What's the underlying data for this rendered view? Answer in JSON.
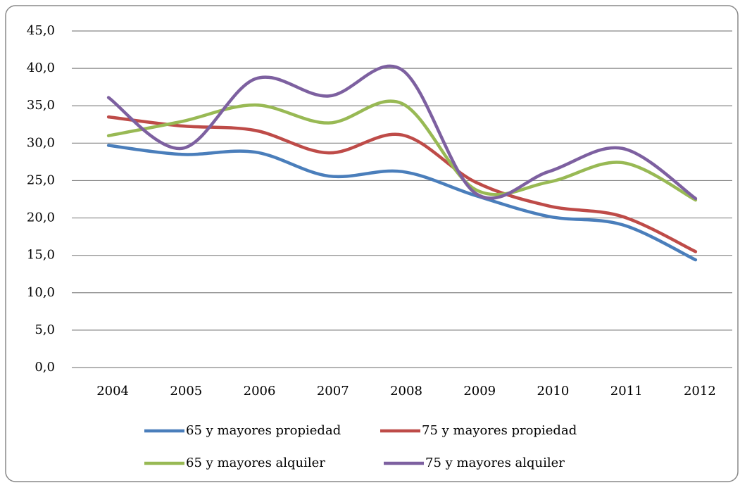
{
  "chart_data": {
    "type": "line",
    "categories": [
      "2004",
      "2005",
      "2006",
      "2007",
      "2008",
      "2009",
      "2010",
      "2011",
      "2012"
    ],
    "series": [
      {
        "name": "65 y mayores propiedad",
        "color": "#4a7ebb",
        "values": [
          29.7,
          28.5,
          28.8,
          25.6,
          26.2,
          23.0,
          20.2,
          19.1,
          14.4
        ]
      },
      {
        "name": "75 y mayores propiedad",
        "color": "#be4b48",
        "values": [
          33.5,
          32.3,
          31.7,
          28.7,
          31.1,
          24.8,
          21.6,
          20.2,
          15.5
        ]
      },
      {
        "name": "65 y mayores alquiler",
        "color": "#98b954",
        "values": [
          31.0,
          32.9,
          35.1,
          32.7,
          35.3,
          23.8,
          24.8,
          27.4,
          22.4
        ]
      },
      {
        "name": "75 y mayores alquiler",
        "color": "#7d60a0",
        "values": [
          36.1,
          29.3,
          38.6,
          36.3,
          39.8,
          23.3,
          26.2,
          29.3,
          22.6
        ]
      }
    ],
    "ylim": [
      0,
      45
    ],
    "yticks": [
      {
        "value": 0,
        "label": "0,0"
      },
      {
        "value": 5,
        "label": "5,0"
      },
      {
        "value": 10,
        "label": "10,0"
      },
      {
        "value": 15,
        "label": "15,0"
      },
      {
        "value": 20,
        "label": "20,0"
      },
      {
        "value": 25,
        "label": "25,0"
      },
      {
        "value": 30,
        "label": "30,0"
      },
      {
        "value": 35,
        "label": "35,0"
      },
      {
        "value": 40,
        "label": "40,0"
      },
      {
        "value": 45,
        "label": "45,0"
      }
    ],
    "grid": true,
    "smooth": true,
    "legend": "bottom"
  }
}
